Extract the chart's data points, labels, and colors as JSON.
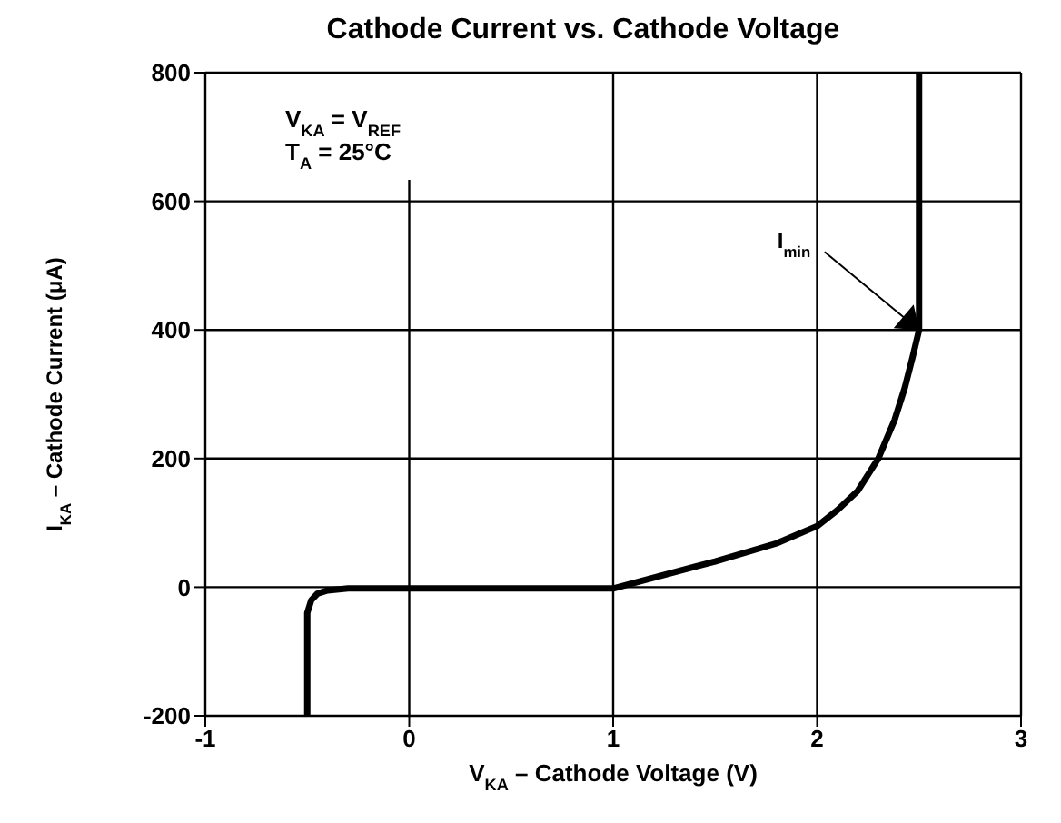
{
  "chart_data": {
    "type": "line",
    "title": "Cathode Current vs. Cathode Voltage",
    "xlabel": "V$_{KA}$ – Cathode Voltage (V)",
    "ylabel": "I$_{KA}$ – Cathode Current (μA)",
    "x": [
      -0.5,
      -0.5,
      -0.48,
      -0.45,
      -0.4,
      -0.3,
      0,
      0.5,
      1,
      1.2,
      1.5,
      1.8,
      2,
      2.1,
      2.2,
      2.3,
      2.38,
      2.43,
      2.47,
      2.5,
      2.5
    ],
    "series": [
      {
        "color": "#000000",
        "values": [
          -200,
          -40,
          -20,
          -10,
          -5,
          -2,
          -2,
          -2,
          -2,
          15,
          40,
          68,
          95,
          120,
          150,
          200,
          260,
          310,
          360,
          400,
          800
        ]
      }
    ],
    "xlim": [
      -1,
      3
    ],
    "xticks": [
      -1,
      0,
      1,
      2,
      3
    ],
    "ylim": [
      -200,
      800
    ],
    "yticks": [
      -200,
      0,
      200,
      400,
      600,
      800
    ],
    "grid": true,
    "marker": "none",
    "line_style": "solid",
    "annotations": [
      "V$_{KA}$ = V$_{REF}$",
      "T$_{A}$ = 25°C",
      {
        "text": "I$_{min}$",
        "x": 2.5,
        "y": 400
      }
    ]
  }
}
